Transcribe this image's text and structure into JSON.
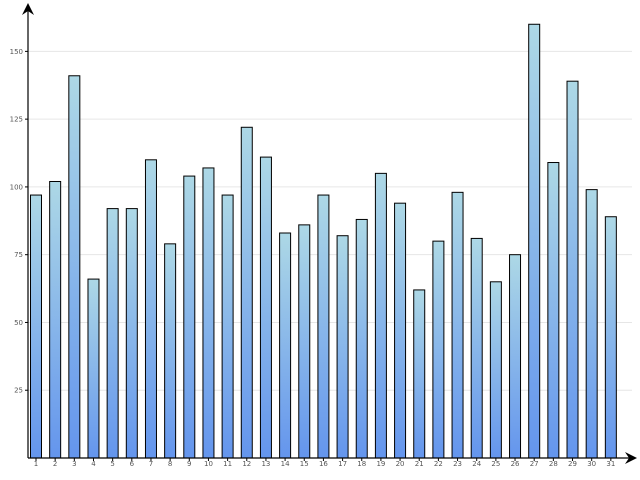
{
  "chart_data": {
    "type": "bar",
    "title": "",
    "xlabel": "",
    "ylabel": "",
    "categories": [
      "1",
      "2",
      "3",
      "4",
      "5",
      "6",
      "7",
      "8",
      "9",
      "10",
      "11",
      "12",
      "13",
      "14",
      "15",
      "16",
      "17",
      "18",
      "19",
      "20",
      "21",
      "22",
      "23",
      "24",
      "25",
      "26",
      "27",
      "28",
      "29",
      "30",
      "31"
    ],
    "values": [
      97,
      102,
      141,
      66,
      92,
      92,
      110,
      79,
      104,
      107,
      97,
      122,
      111,
      83,
      86,
      97,
      82,
      88,
      105,
      94,
      62,
      80,
      98,
      81,
      65,
      75,
      160,
      109,
      139,
      99,
      89
    ],
    "ylim": [
      0,
      166
    ],
    "y_ticks": [
      25,
      50,
      75,
      100,
      125,
      150
    ],
    "y_tick_labels": [
      "25",
      "50",
      "75",
      "100",
      "125",
      "150"
    ],
    "grid": "horizontal",
    "legend": "none",
    "colors": {
      "bar_top": "#add8e6",
      "bar_bottom": "#6495ed",
      "bar_outline": "#000000",
      "grid": "#e6e6e6",
      "axis": "#000000",
      "tick_text": "#555555"
    }
  }
}
